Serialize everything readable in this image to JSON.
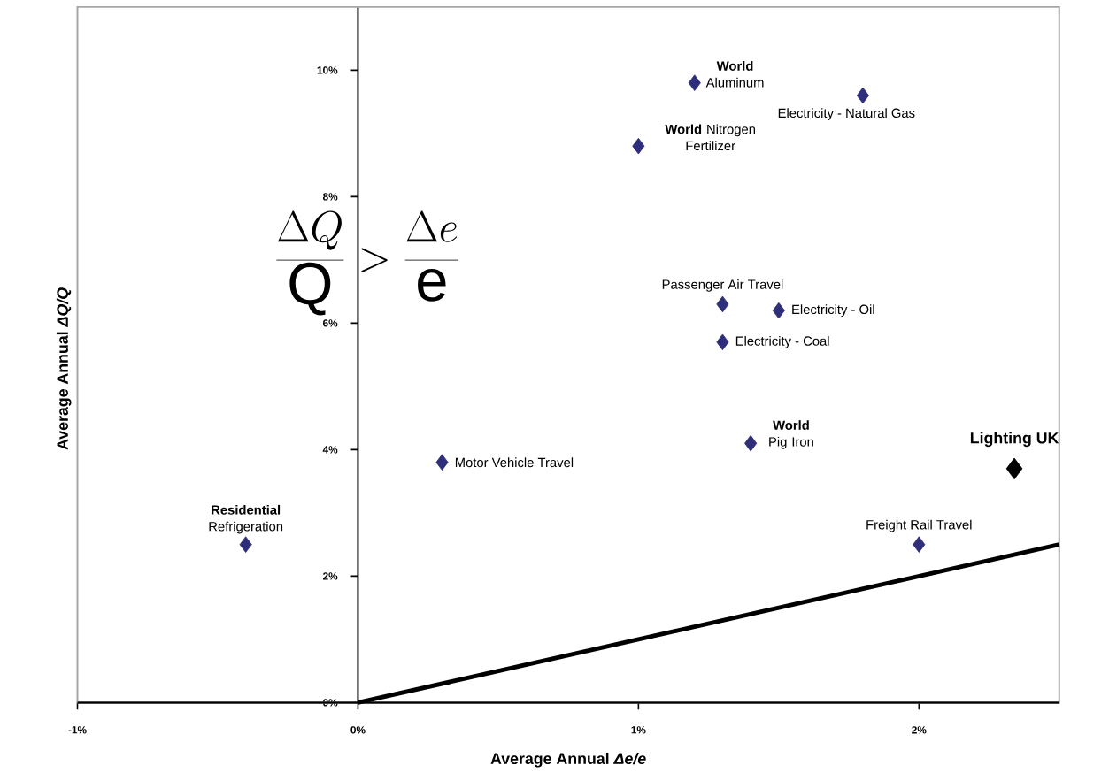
{
  "chart_data": {
    "type": "scatter",
    "marker": "diamond",
    "xlabel": "Average Annual *Δe/e*",
    "ylabel": "Average Annual *ΔQ/Q*",
    "xlim": [
      -1,
      2.5
    ],
    "ylim": [
      0,
      11
    ],
    "xticks": [
      {
        "value": -1,
        "label": "-1%"
      },
      {
        "value": 0,
        "label": "0%"
      },
      {
        "value": 1,
        "label": "1%"
      },
      {
        "value": 2,
        "label": "2%"
      }
    ],
    "yticks": [
      {
        "value": 0,
        "label": "0%"
      },
      {
        "value": 2,
        "label": "2%"
      },
      {
        "value": 4,
        "label": "4%"
      },
      {
        "value": 6,
        "label": "6%"
      },
      {
        "value": 8,
        "label": "8%"
      },
      {
        "value": 10,
        "label": "10%"
      }
    ],
    "series": [
      {
        "color": "#2e2e7a",
        "x": [
          -0.4,
          0.3,
          1.2,
          1.8,
          1.0,
          1.3,
          1.5,
          1.3,
          1.4,
          2.0
        ],
        "values": [
          2.5,
          3.8,
          9.8,
          9.6,
          8.8,
          6.3,
          6.2,
          5.7,
          4.1,
          2.5
        ]
      },
      {
        "name": "Lighting UK",
        "color": "#000000",
        "x": [
          2.34
        ],
        "values": [
          3.7
        ]
      },
      {
        "type": "line",
        "marker": "none",
        "color": "#000000",
        "x": [
          0,
          2.5
        ],
        "values": [
          0,
          2.5
        ]
      }
    ],
    "annotations": [
      {
        "text": "**Residential** Refrigeration",
        "x": -0.4,
        "y": 2.5
      },
      {
        "text": "Motor Vehicle Travel",
        "x": 0.3,
        "y": 3.8
      },
      {
        "text": "**World** Aluminum",
        "x": 1.2,
        "y": 9.8
      },
      {
        "text": "Electricity - Natural Gas",
        "x": 1.8,
        "y": 9.6
      },
      {
        "text": "**World** Nitrogen Fertilizer",
        "x": 1.0,
        "y": 8.8
      },
      {
        "text": "Passenger Air Travel",
        "x": 1.3,
        "y": 6.3
      },
      {
        "text": "Electricity - Oil",
        "x": 1.5,
        "y": 6.2
      },
      {
        "text": "Electricity - Coal",
        "x": 1.3,
        "y": 5.7
      },
      {
        "text": "**World** Pig Iron",
        "x": 1.4,
        "y": 4.1
      },
      {
        "text": "Freight Rail Travel",
        "x": 2.0,
        "y": 2.5
      },
      "\\frac{\\Delta Q}{\\mathrm{Q}} > \\frac{\\Delta e}{\\mathrm{e}}"
    ]
  }
}
